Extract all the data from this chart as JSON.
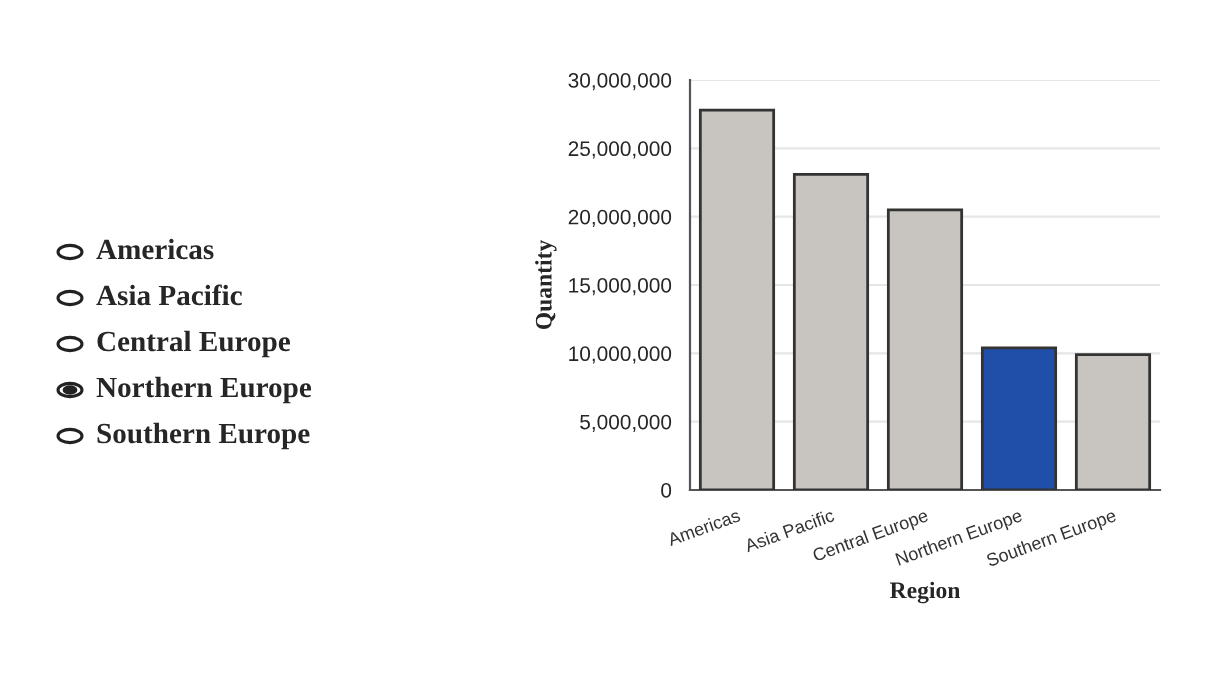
{
  "chart_data": {
    "type": "bar",
    "xlabel": "Region",
    "ylabel": "Quantity",
    "categories": [
      "Americas",
      "Asia Pacific",
      "Central Europe",
      "Northern Europe",
      "Southern Europe"
    ],
    "values": [
      27800000,
      23100000,
      20500000,
      10400000,
      9900000
    ],
    "colors": [
      "#c8c4bf",
      "#c8c4bf",
      "#c8c4bf",
      "#1f4fa8",
      "#c8c4bf"
    ],
    "ylim": [
      0,
      30000000
    ],
    "yticks": [
      {
        "value": 0,
        "label": "0"
      },
      {
        "value": 5000000,
        "label": "5,000,000"
      },
      {
        "value": 10000000,
        "label": "10,000,000"
      },
      {
        "value": 15000000,
        "label": "15,000,000"
      },
      {
        "value": 20000000,
        "label": "20,000,000"
      },
      {
        "value": 25000000,
        "label": "25,000,000"
      },
      {
        "value": 30000000,
        "label": "30,000,000"
      }
    ],
    "grid": "y",
    "annotations": [
      "Americas",
      "Asia Pacific",
      "Central Europe",
      "Northern Europe",
      "Southern Europe"
    ]
  }
}
